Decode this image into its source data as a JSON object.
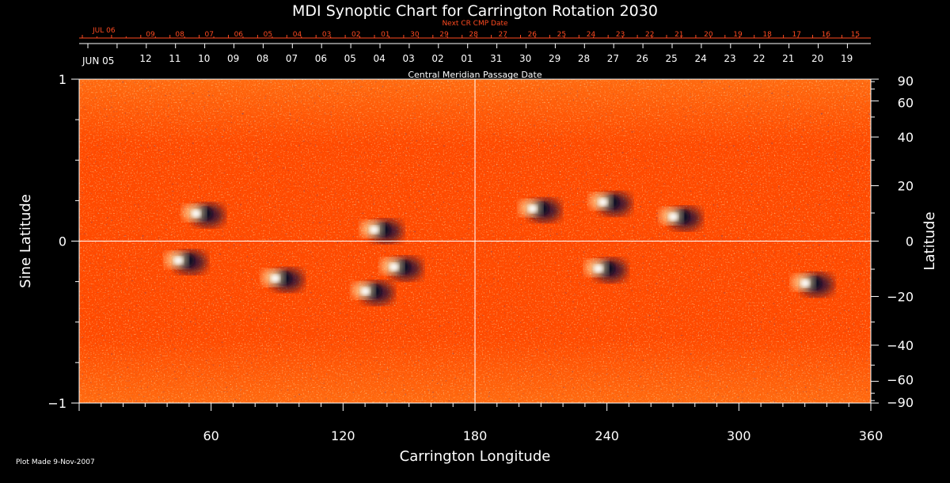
{
  "chart_data": {
    "type": "heatmap",
    "title": "MDI Synoptic Chart for Carrington Rotation 2030",
    "xlabel": "Carrington Longitude",
    "ylabel_left": "Sine Latitude",
    "ylabel_right": "Latitude",
    "xlim": [
      0,
      360
    ],
    "ylim": [
      -1,
      1
    ],
    "x_ticks": [
      60,
      120,
      180,
      240,
      300,
      360
    ],
    "y_left_ticks": [
      {
        "value": 1,
        "label": "1"
      },
      {
        "value": 0,
        "label": "0"
      },
      {
        "value": -1,
        "label": "−1"
      }
    ],
    "y_right_ticks": [
      90,
      60,
      40,
      20,
      0,
      -20,
      -40,
      -60,
      -90
    ],
    "grid": "crosshair at 180° longitude and 0 latitude",
    "top_axis_title": "Central Meridian Passage Date",
    "top_axis_start_label": "JUN 05",
    "top_axis_dates": [
      "12",
      "11",
      "10",
      "09",
      "08",
      "07",
      "06",
      "05",
      "04",
      "03",
      "02",
      "01",
      "31",
      "30",
      "29",
      "28",
      "27",
      "26",
      "25",
      "24",
      "23",
      "22",
      "21",
      "20",
      "19"
    ],
    "next_cr_title": "Next CR CMP Date",
    "next_cr_start_label": "JUL 06",
    "next_cr_dates": [
      "09",
      "08",
      "07",
      "06",
      "05",
      "04",
      "03",
      "02",
      "01",
      "30",
      "29",
      "28",
      "27",
      "26",
      "25",
      "24",
      "23",
      "22",
      "21",
      "20",
      "19",
      "18",
      "17",
      "16",
      "15"
    ],
    "colorscale": [
      "#1a1030",
      "#8b1a00",
      "#ff4a00",
      "#ff7a1a",
      "#ffd27a",
      "#ffffff"
    ],
    "active_regions": [
      {
        "lon": 55,
        "sin_lat": 0.17,
        "polarity": "bipolar"
      },
      {
        "lon": 47,
        "sin_lat": -0.12,
        "polarity": "bipolar"
      },
      {
        "lon": 91,
        "sin_lat": -0.23,
        "polarity": "bipolar"
      },
      {
        "lon": 132,
        "sin_lat": -0.31,
        "polarity": "bipolar"
      },
      {
        "lon": 145,
        "sin_lat": -0.16,
        "polarity": "bipolar"
      },
      {
        "lon": 136,
        "sin_lat": 0.07,
        "polarity": "bipolar"
      },
      {
        "lon": 208,
        "sin_lat": 0.2,
        "polarity": "bipolar"
      },
      {
        "lon": 240,
        "sin_lat": 0.24,
        "polarity": "bipolar"
      },
      {
        "lon": 238,
        "sin_lat": -0.17,
        "polarity": "bipolar"
      },
      {
        "lon": 272,
        "sin_lat": 0.15,
        "polarity": "bipolar"
      },
      {
        "lon": 332,
        "sin_lat": -0.26,
        "polarity": "bipolar"
      }
    ]
  },
  "footer": {
    "plot_made": "Plot Made  9-Nov-2007"
  }
}
